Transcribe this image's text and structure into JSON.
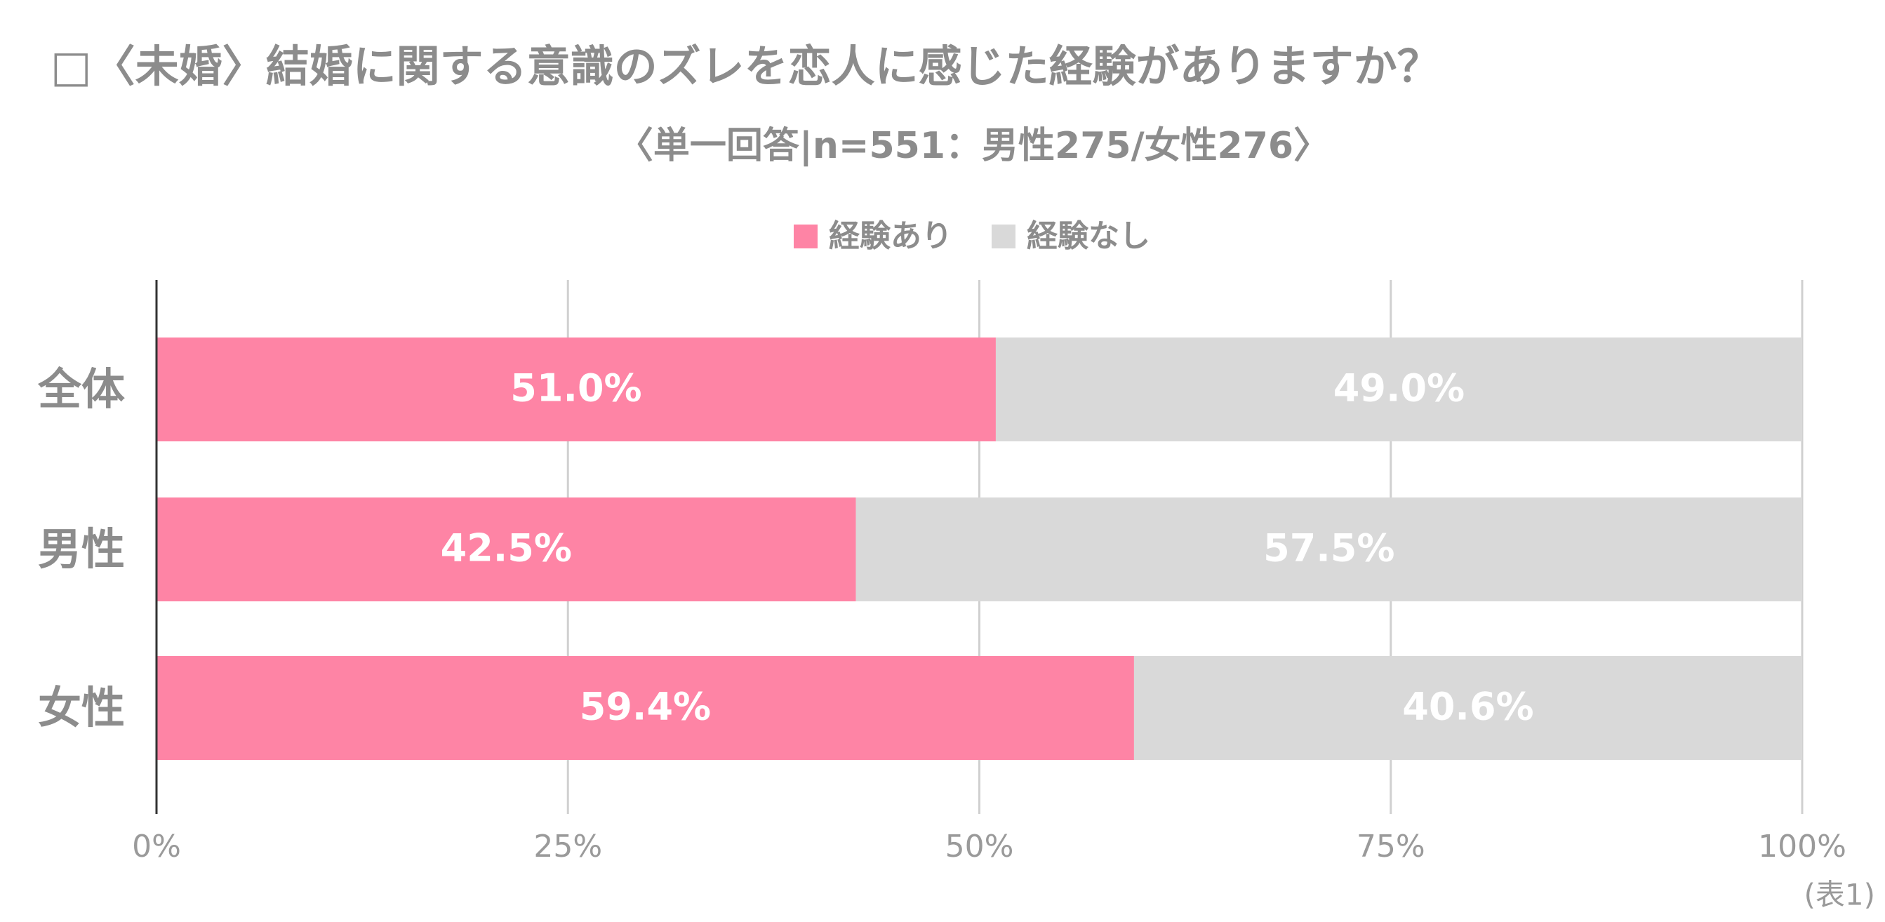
{
  "chart_data": {
    "type": "stacked-bar-horizontal",
    "title": "□〈未婚〉結婚に関する意識のズレを恋人に感じた経験がありますか？",
    "subtitle": "〈単一回答|n=551：男性275/女性276〉",
    "categories": [
      "全体",
      "男性",
      "女性"
    ],
    "series": [
      {
        "name": "経験あり",
        "color": "#fe84a5",
        "values": [
          51.0,
          42.5,
          59.4
        ],
        "value_labels": [
          "51.0%",
          "42.5%",
          "59.4%"
        ]
      },
      {
        "name": "経験なし",
        "color": "#d9d9d9",
        "values": [
          49.0,
          57.5,
          40.6
        ],
        "value_labels": [
          "49.0%",
          "57.5%",
          "40.6%"
        ]
      }
    ],
    "xlim": [
      0,
      100
    ],
    "xticks": [
      {
        "value": 0,
        "label": "0%"
      },
      {
        "value": 25,
        "label": "25%"
      },
      {
        "value": 50,
        "label": "50%"
      },
      {
        "value": 75,
        "label": "75%"
      },
      {
        "value": 100,
        "label": "100%"
      }
    ],
    "grid": true,
    "legend": "top",
    "note": "(表1)"
  }
}
